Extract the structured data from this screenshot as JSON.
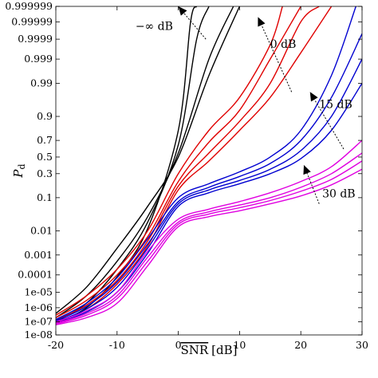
{
  "chart_data": {
    "type": "line",
    "title": "",
    "xlabel": "SNR",
    "xlabel_suffix": "[dB]",
    "ylabel_main": "P",
    "ylabel_sub": "d",
    "xlim": [
      -20,
      30
    ],
    "y_scale": "probit",
    "grid": false,
    "x_ticks": [
      -20,
      -10,
      0,
      10,
      20,
      30
    ],
    "x_tick_labels": [
      "-20",
      "-10",
      "0",
      "10",
      "20",
      "30"
    ],
    "y_ticks": [
      1e-08,
      1e-07,
      1e-06,
      1e-05,
      0.0001,
      0.001,
      0.01,
      0.1,
      0.3,
      0.5,
      0.7,
      0.9,
      0.99,
      0.999,
      0.9999,
      0.99999,
      0.999999
    ],
    "y_tick_labels": [
      "1e-08",
      "1e-07",
      "1e-06",
      "1e-05",
      "0.0001",
      "0.001",
      "0.01",
      "0.1",
      "0.3",
      "0.5",
      "0.7",
      "0.9",
      "0.99",
      "0.999",
      "0.9999",
      "0.99999",
      "0.999999"
    ],
    "colors": {
      "minus_inf_dB": "#000000",
      "zero_dB": "#e00000",
      "fifteen_dB": "#0000d0",
      "thirty_dB": "#e000e0"
    },
    "series": [
      {
        "group": "minus_inf_dB",
        "x": [
          -20,
          -15,
          -10,
          -5,
          0,
          5,
          10
        ],
        "y": [
          4e-07,
          2e-05,
          0.002,
          0.06,
          0.5,
          0.995,
          0.999999
        ]
      },
      {
        "group": "minus_inf_dB",
        "x": [
          -20,
          -15,
          -10,
          -5,
          0,
          5,
          9
        ],
        "y": [
          2e-07,
          6e-06,
          0.0005,
          0.03,
          0.55,
          0.999,
          0.999999
        ]
      },
      {
        "group": "minus_inf_dB",
        "x": [
          -20,
          -15,
          -10,
          -5,
          0,
          3,
          5
        ],
        "y": [
          1e-07,
          2e-06,
          0.0002,
          0.02,
          0.65,
          0.9999,
          0.999999
        ]
      },
      {
        "group": "minus_inf_dB",
        "x": [
          -20,
          -15,
          -10,
          -5,
          0,
          2,
          3
        ],
        "y": [
          8e-08,
          1e-06,
          8e-05,
          0.012,
          0.8,
          0.99999,
          0.999999
        ]
      },
      {
        "group": "zero_dB",
        "x": [
          -20,
          -15,
          -10,
          -5,
          0,
          5,
          10,
          15,
          17
        ],
        "y": [
          3e-07,
          6e-06,
          0.0002,
          0.01,
          0.3,
          0.8,
          0.97,
          0.9998,
          0.999999
        ]
      },
      {
        "group": "zero_dB",
        "x": [
          -20,
          -15,
          -10,
          -5,
          0,
          5,
          10,
          15,
          20
        ],
        "y": [
          2e-07,
          3e-06,
          0.0001,
          0.006,
          0.22,
          0.68,
          0.93,
          0.999,
          0.999999
        ]
      },
      {
        "group": "zero_dB",
        "x": [
          -20,
          -15,
          -10,
          -5,
          0,
          5,
          10,
          15,
          20,
          23
        ],
        "y": [
          1.3e-07,
          1.5e-06,
          5e-05,
          0.004,
          0.18,
          0.55,
          0.87,
          0.99,
          0.99999,
          0.999999
        ]
      },
      {
        "group": "zero_dB",
        "x": [
          -20,
          -15,
          -10,
          -5,
          0,
          5,
          10,
          15,
          20,
          25
        ],
        "y": [
          1e-07,
          8e-07,
          3e-05,
          0.0025,
          0.15,
          0.45,
          0.8,
          0.97,
          0.9995,
          0.999999
        ]
      },
      {
        "group": "fifteen_dB",
        "x": [
          -20,
          -15,
          -10,
          -5,
          0,
          5,
          10,
          15,
          20,
          25,
          29
        ],
        "y": [
          1.5e-07,
          2e-06,
          7e-05,
          0.005,
          0.1,
          0.2,
          0.32,
          0.5,
          0.8,
          0.995,
          0.999999
        ]
      },
      {
        "group": "fifteen_dB",
        "x": [
          -20,
          -15,
          -10,
          -5,
          0,
          5,
          10,
          15,
          20,
          25,
          30
        ],
        "y": [
          1.2e-07,
          1.2e-06,
          4e-05,
          0.003,
          0.08,
          0.17,
          0.27,
          0.42,
          0.7,
          0.97,
          0.99995
        ]
      },
      {
        "group": "fifteen_dB",
        "x": [
          -20,
          -15,
          -10,
          -5,
          0,
          5,
          10,
          15,
          20,
          25,
          30
        ],
        "y": [
          1e-07,
          8e-07,
          2e-05,
          0.002,
          0.07,
          0.15,
          0.23,
          0.35,
          0.58,
          0.9,
          0.999
        ]
      },
      {
        "group": "fifteen_dB",
        "x": [
          -20,
          -15,
          -10,
          -5,
          0,
          5,
          10,
          15,
          20,
          25,
          30
        ],
        "y": [
          8e-08,
          5e-07,
          1e-05,
          0.0012,
          0.06,
          0.13,
          0.2,
          0.3,
          0.48,
          0.8,
          0.99
        ]
      },
      {
        "group": "thirty_dB",
        "x": [
          -20,
          -15,
          -10,
          -5,
          0,
          5,
          10,
          15,
          20,
          25,
          30
        ],
        "y": [
          1e-07,
          6e-07,
          1e-05,
          0.0015,
          0.025,
          0.05,
          0.08,
          0.13,
          0.22,
          0.38,
          0.7
        ]
      },
      {
        "group": "thirty_dB",
        "x": [
          -20,
          -15,
          -10,
          -5,
          0,
          5,
          10,
          15,
          20,
          25,
          30
        ],
        "y": [
          8e-08,
          4e-07,
          6e-06,
          0.0008,
          0.02,
          0.042,
          0.065,
          0.1,
          0.17,
          0.3,
          0.55
        ]
      },
      {
        "group": "thirty_dB",
        "x": [
          -20,
          -15,
          -10,
          -5,
          0,
          5,
          10,
          15,
          20,
          25,
          30
        ],
        "y": [
          7e-08,
          3e-07,
          4e-06,
          0.0005,
          0.017,
          0.036,
          0.055,
          0.085,
          0.14,
          0.24,
          0.45
        ]
      },
      {
        "group": "thirty_dB",
        "x": [
          -20,
          -15,
          -10,
          -5,
          0,
          5,
          10,
          15,
          20,
          25,
          30
        ],
        "y": [
          6e-08,
          2e-07,
          2e-06,
          0.0003,
          0.014,
          0.03,
          0.045,
          0.07,
          0.11,
          0.19,
          0.35
        ]
      }
    ],
    "annotations": [
      {
        "text": "−∞ dB",
        "at": [
          4.5,
          0.9999
        ],
        "arrow_tip": [
          0,
          0.999999
        ]
      },
      {
        "text": "0 dB",
        "at": [
          18.5,
          0.98
        ],
        "arrow_tip": [
          13,
          0.999995
        ]
      },
      {
        "text": "15 dB",
        "at": [
          27,
          0.6
        ],
        "arrow_tip": [
          21.5,
          0.98
        ]
      },
      {
        "text": "30 dB",
        "at": [
          23,
          0.07
        ],
        "arrow_tip": [
          20.5,
          0.4
        ]
      }
    ]
  }
}
